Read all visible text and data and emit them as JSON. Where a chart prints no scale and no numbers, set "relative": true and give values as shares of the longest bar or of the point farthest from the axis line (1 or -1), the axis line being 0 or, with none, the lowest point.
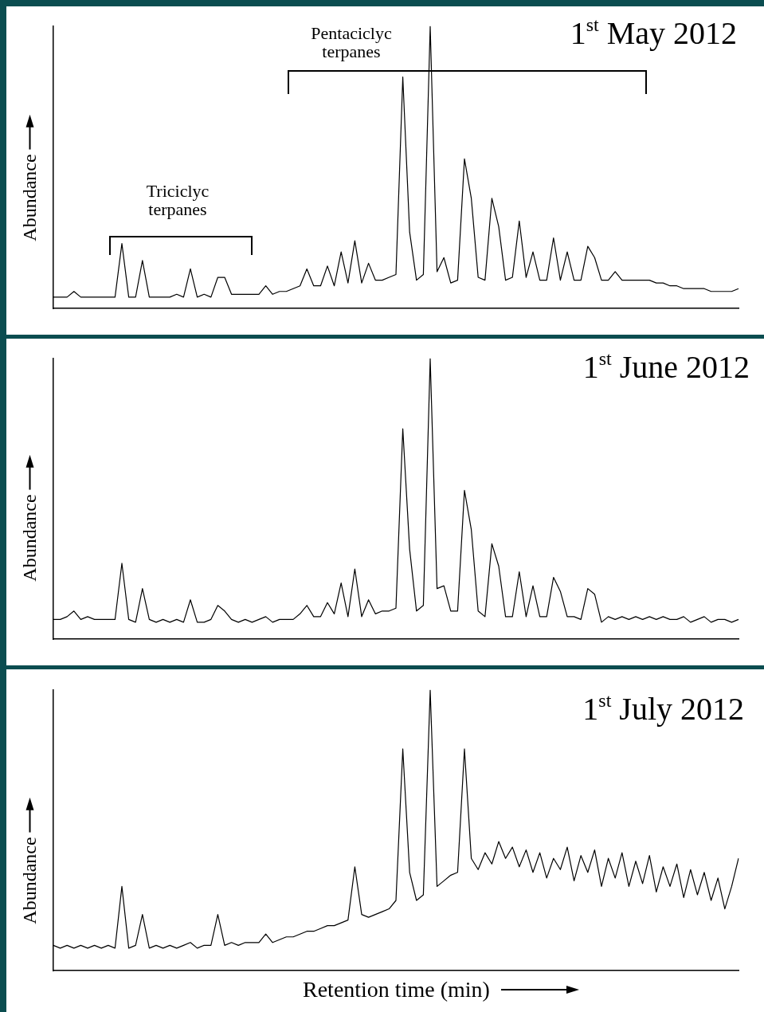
{
  "chart_data": [
    {
      "type": "line",
      "title": "1$^{st}$ May 2012",
      "ylabel": "Abundance",
      "relative": true,
      "color": "#000000",
      "annotations": [
        "Triciclyc terpanes",
        "Pentaciclyc terpanes"
      ],
      "categories": [
        null,
        null,
        null,
        null,
        null,
        null,
        null,
        null,
        null,
        null,
        null,
        null,
        null,
        null,
        null,
        null,
        null,
        null,
        null,
        null,
        null,
        null,
        null,
        null,
        null,
        null,
        null,
        null,
        null,
        null,
        null,
        null,
        null,
        null,
        null,
        null,
        null,
        null,
        null,
        null,
        null,
        null,
        null,
        null,
        null,
        null,
        null,
        null,
        null,
        null,
        null,
        null,
        null,
        null,
        null,
        null,
        null,
        null,
        null,
        null,
        null,
        null,
        null,
        null,
        null,
        null,
        null,
        null,
        null,
        null,
        null,
        null,
        null,
        null,
        null,
        null,
        null,
        null,
        null,
        null,
        null,
        null,
        null,
        null,
        null,
        null,
        null,
        null,
        null,
        null,
        null,
        null,
        null,
        null,
        null,
        null,
        null,
        null,
        null,
        null,
        null
      ],
      "values": [
        0.04,
        0.04,
        0.04,
        0.06,
        0.04,
        0.04,
        0.04,
        0.04,
        0.04,
        0.04,
        0.23,
        0.04,
        0.04,
        0.17,
        0.04,
        0.04,
        0.04,
        0.04,
        0.05,
        0.04,
        0.14,
        0.04,
        0.05,
        0.04,
        0.11,
        0.11,
        0.05,
        0.05,
        0.05,
        0.05,
        0.05,
        0.08,
        0.05,
        0.06,
        0.06,
        0.07,
        0.08,
        0.14,
        0.08,
        0.08,
        0.15,
        0.08,
        0.2,
        0.09,
        0.24,
        0.09,
        0.16,
        0.1,
        0.1,
        0.11,
        0.12,
        0.82,
        0.27,
        0.1,
        0.12,
        1,
        0.13,
        0.18,
        0.09,
        0.1,
        0.53,
        0.39,
        0.11,
        0.1,
        0.39,
        0.29,
        0.1,
        0.11,
        0.31,
        0.11,
        0.2,
        0.1,
        0.1,
        0.25,
        0.1,
        0.2,
        0.1,
        0.1,
        0.22,
        0.18,
        0.1,
        0.1,
        0.13,
        0.1,
        0.1,
        0.1,
        0.1,
        0.1,
        0.09,
        0.09,
        0.08,
        0.08,
        0.07,
        0.07,
        0.07,
        0.07,
        0.06,
        0.06,
        0.06,
        0.06,
        0.07
      ]
    },
    {
      "type": "line",
      "title": "1$^{st}$ June 2012",
      "ylabel": "Abundance",
      "relative": true,
      "color": "#000000",
      "categories": [
        null,
        null,
        null,
        null,
        null,
        null,
        null,
        null,
        null,
        null,
        null,
        null,
        null,
        null,
        null,
        null,
        null,
        null,
        null,
        null,
        null,
        null,
        null,
        null,
        null,
        null,
        null,
        null,
        null,
        null,
        null,
        null,
        null,
        null,
        null,
        null,
        null,
        null,
        null,
        null,
        null,
        null,
        null,
        null,
        null,
        null,
        null,
        null,
        null,
        null,
        null,
        null,
        null,
        null,
        null,
        null,
        null,
        null,
        null,
        null,
        null,
        null,
        null,
        null,
        null,
        null,
        null,
        null,
        null,
        null,
        null,
        null,
        null,
        null,
        null,
        null,
        null,
        null,
        null,
        null,
        null,
        null,
        null,
        null,
        null,
        null,
        null,
        null,
        null,
        null,
        null,
        null,
        null,
        null,
        null,
        null,
        null,
        null,
        null,
        null,
        null
      ],
      "values": [
        0.07,
        0.07,
        0.08,
        0.1,
        0.07,
        0.08,
        0.07,
        0.07,
        0.07,
        0.07,
        0.27,
        0.07,
        0.06,
        0.18,
        0.07,
        0.06,
        0.07,
        0.06,
        0.07,
        0.06,
        0.14,
        0.06,
        0.06,
        0.07,
        0.12,
        0.1,
        0.07,
        0.06,
        0.07,
        0.06,
        0.07,
        0.08,
        0.06,
        0.07,
        0.07,
        0.07,
        0.09,
        0.12,
        0.08,
        0.08,
        0.13,
        0.09,
        0.2,
        0.08,
        0.25,
        0.08,
        0.14,
        0.09,
        0.1,
        0.1,
        0.11,
        0.75,
        0.32,
        0.1,
        0.12,
        1,
        0.18,
        0.19,
        0.1,
        0.1,
        0.53,
        0.39,
        0.1,
        0.08,
        0.34,
        0.26,
        0.08,
        0.08,
        0.24,
        0.08,
        0.19,
        0.08,
        0.08,
        0.22,
        0.17,
        0.08,
        0.08,
        0.07,
        0.18,
        0.16,
        0.06,
        0.08,
        0.07,
        0.08,
        0.07,
        0.08,
        0.07,
        0.08,
        0.07,
        0.08,
        0.07,
        0.07,
        0.08,
        0.06,
        0.07,
        0.08,
        0.06,
        0.07,
        0.07,
        0.06,
        0.07
      ]
    },
    {
      "type": "line",
      "title": "1$^{st}$ July 2012",
      "ylabel": "Abundance",
      "xlabel": "Retention time (min)",
      "relative": true,
      "color": "#000000",
      "categories": [
        null,
        null,
        null,
        null,
        null,
        null,
        null,
        null,
        null,
        null,
        null,
        null,
        null,
        null,
        null,
        null,
        null,
        null,
        null,
        null,
        null,
        null,
        null,
        null,
        null,
        null,
        null,
        null,
        null,
        null,
        null,
        null,
        null,
        null,
        null,
        null,
        null,
        null,
        null,
        null,
        null,
        null,
        null,
        null,
        null,
        null,
        null,
        null,
        null,
        null,
        null,
        null,
        null,
        null,
        null,
        null,
        null,
        null,
        null,
        null,
        null,
        null,
        null,
        null,
        null,
        null,
        null,
        null,
        null,
        null,
        null,
        null,
        null,
        null,
        null,
        null,
        null,
        null,
        null,
        null,
        null,
        null,
        null,
        null,
        null,
        null,
        null,
        null,
        null,
        null,
        null,
        null,
        null,
        null,
        null,
        null,
        null,
        null,
        null,
        null,
        null
      ],
      "values": [
        0.09,
        0.08,
        0.09,
        0.08,
        0.09,
        0.08,
        0.09,
        0.08,
        0.09,
        0.08,
        0.3,
        0.08,
        0.09,
        0.2,
        0.08,
        0.09,
        0.08,
        0.09,
        0.08,
        0.09,
        0.1,
        0.08,
        0.09,
        0.09,
        0.2,
        0.09,
        0.1,
        0.09,
        0.1,
        0.1,
        0.1,
        0.13,
        0.1,
        0.11,
        0.12,
        0.12,
        0.13,
        0.14,
        0.14,
        0.15,
        0.16,
        0.16,
        0.17,
        0.18,
        0.37,
        0.2,
        0.19,
        0.2,
        0.21,
        0.22,
        0.25,
        0.79,
        0.35,
        0.25,
        0.27,
        1,
        0.3,
        0.32,
        0.34,
        0.35,
        0.79,
        0.4,
        0.36,
        0.42,
        0.38,
        0.46,
        0.4,
        0.44,
        0.37,
        0.43,
        0.35,
        0.42,
        0.33,
        0.4,
        0.36,
        0.44,
        0.32,
        0.41,
        0.35,
        0.43,
        0.3,
        0.4,
        0.33,
        0.42,
        0.3,
        0.39,
        0.31,
        0.41,
        0.28,
        0.37,
        0.3,
        0.38,
        0.26,
        0.36,
        0.27,
        0.35,
        0.25,
        0.33,
        0.22,
        0.3,
        0.4
      ]
    }
  ]
}
